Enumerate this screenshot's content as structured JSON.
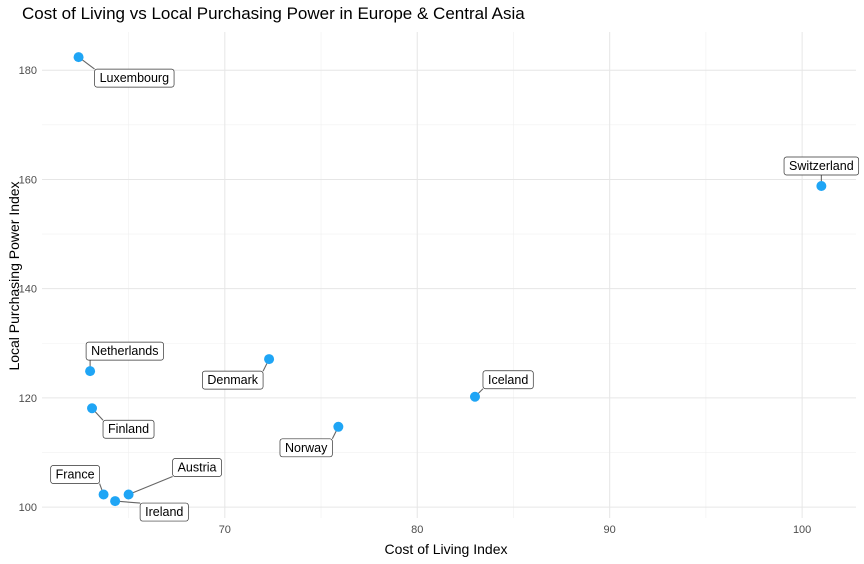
{
  "chart_data": {
    "type": "scatter",
    "title": "Cost of Living vs Local Purchasing Power in Europe & Central Asia",
    "xlabel": "Cost of Living Index",
    "ylabel": "Local Purchasing Power Index",
    "xlim": [
      60.5,
      102.8
    ],
    "ylim": [
      98.0,
      187.0
    ],
    "x_ticks": [
      70,
      80,
      90,
      100
    ],
    "y_ticks": [
      100,
      120,
      140,
      160,
      180
    ],
    "grid": true,
    "point_color": "#1fa5f5",
    "points": [
      {
        "label": "Luxembourg",
        "x": 62.4,
        "y": 182.4
      },
      {
        "label": "Switzerland",
        "x": 101.0,
        "y": 158.8
      },
      {
        "label": "Netherlands",
        "x": 63.0,
        "y": 124.9
      },
      {
        "label": "Denmark",
        "x": 72.3,
        "y": 127.1
      },
      {
        "label": "Iceland",
        "x": 83.0,
        "y": 120.2
      },
      {
        "label": "Finland",
        "x": 63.1,
        "y": 118.1
      },
      {
        "label": "Norway",
        "x": 75.9,
        "y": 114.7
      },
      {
        "label": "France",
        "x": 63.7,
        "y": 102.3
      },
      {
        "label": "Austria",
        "x": 65.0,
        "y": 102.3
      },
      {
        "label": "Ireland",
        "x": 64.3,
        "y": 101.1
      }
    ]
  }
}
